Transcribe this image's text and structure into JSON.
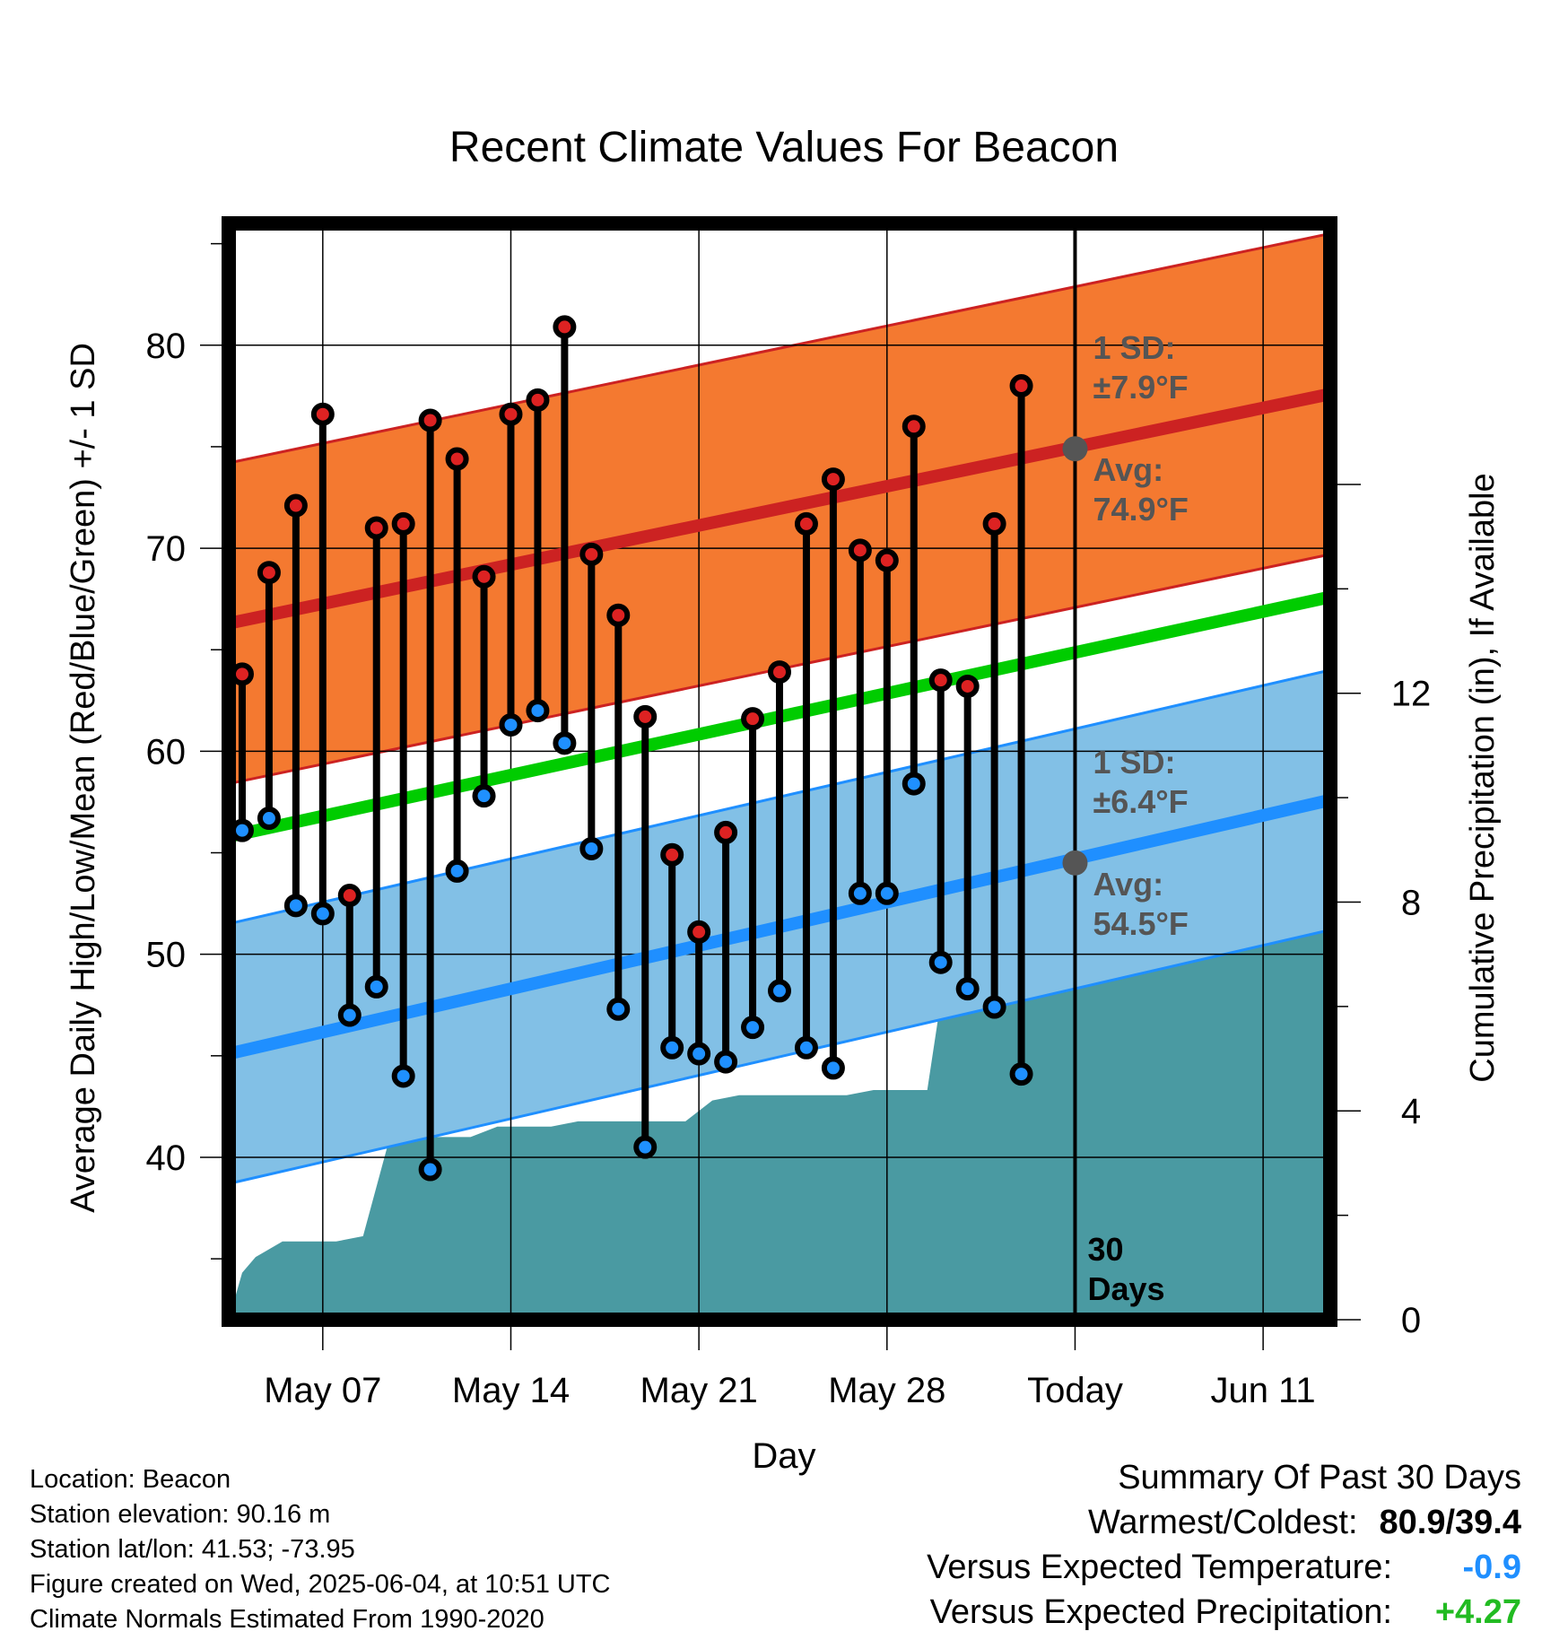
{
  "chart_data": {
    "type": "line",
    "title": "Recent Climate Values For Beacon",
    "xlabel": "Day",
    "ylabel_left": "Average Daily High/Low/Mean (Red/Blue/Green) +/- 1 SD",
    "ylabel_right": "Cumulative Precipitation (in), If Available",
    "x_tick_labels": [
      {
        "day": 3,
        "label": "May 07"
      },
      {
        "day": 10,
        "label": "May 14"
      },
      {
        "day": 17,
        "label": "May 21"
      },
      {
        "day": 24,
        "label": "May 28"
      },
      {
        "day": 31,
        "label": "Today"
      },
      {
        "day": 38,
        "label": "Jun 11"
      }
    ],
    "x_range_days_since_may04": [
      -0.5,
      40.5
    ],
    "ylim_left": [
      32,
      86
    ],
    "y_ticks_left": [
      40,
      50,
      60,
      70,
      80
    ],
    "ylim_right": [
      0,
      21
    ],
    "y_ticks_right": [
      0,
      4,
      8,
      12
    ],
    "grid": true,
    "colors": {
      "high_band": "#f47930",
      "high_line": "#cc2222",
      "low_band": "#82c0e6",
      "low_line": "#1f8fff",
      "mean_line": "#00cc00",
      "precip": "#4a9aa2",
      "summary_temp": "#1f8fff",
      "summary_precip": "#22bb22"
    },
    "normal_high": {
      "start": 66.3,
      "end": 77.6,
      "sd_label": "1 SD:",
      "sd_value": "±7.9°F",
      "avg_label": "Avg:",
      "avg_value": "74.9°F",
      "today_value": 74.9
    },
    "normal_low": {
      "start": 45.1,
      "end": 57.6,
      "sd_label": "1 SD:",
      "sd_value": "±6.4°F",
      "avg_label": "Avg:",
      "avg_value": "54.5°F",
      "today_value": 54.5
    },
    "normal_mean": {
      "start": 55.8,
      "end": 67.6
    },
    "today_marker": {
      "line1": "30",
      "line2": "Days"
    },
    "daily": [
      {
        "high": 63.8,
        "low": 56.1
      },
      {
        "high": 68.8,
        "low": 56.7
      },
      {
        "high": 72.1,
        "low": 52.4
      },
      {
        "high": 76.6,
        "low": 52.0
      },
      {
        "high": 52.9,
        "low": 47.0
      },
      {
        "high": 71.0,
        "low": 48.4
      },
      {
        "high": 71.2,
        "low": 44.0
      },
      {
        "high": 76.3,
        "low": 39.4
      },
      {
        "high": 74.4,
        "low": 54.1
      },
      {
        "high": 68.6,
        "low": 57.8
      },
      {
        "high": 76.6,
        "low": 61.3
      },
      {
        "high": 77.3,
        "low": 62.0
      },
      {
        "high": 80.9,
        "low": 60.4
      },
      {
        "high": 69.7,
        "low": 55.2
      },
      {
        "high": 66.7,
        "low": 47.3
      },
      {
        "high": 61.7,
        "low": 40.5
      },
      {
        "high": 54.9,
        "low": 45.4
      },
      {
        "high": 51.1,
        "low": 45.1
      },
      {
        "high": 56.0,
        "low": 44.7
      },
      {
        "high": 61.6,
        "low": 46.4
      },
      {
        "high": 63.9,
        "low": 48.2
      },
      {
        "high": 71.2,
        "low": 45.4
      },
      {
        "high": 73.4,
        "low": 44.4
      },
      {
        "high": 69.9,
        "low": 53.0
      },
      {
        "high": 69.4,
        "low": 53.0
      },
      {
        "high": 76.0,
        "low": 58.4
      },
      {
        "high": 63.5,
        "low": 49.6
      },
      {
        "high": 63.2,
        "low": 48.3
      },
      {
        "high": 71.2,
        "low": 47.4
      },
      {
        "high": 78.0,
        "low": 44.1
      }
    ],
    "precip_cumulative": [
      {
        "day": -0.5,
        "value": 0.0
      },
      {
        "day": 0.0,
        "value": 0.9
      },
      {
        "day": 0.5,
        "value": 1.2
      },
      {
        "day": 1.5,
        "value": 1.5
      },
      {
        "day": 3.0,
        "value": 1.5
      },
      {
        "day": 3.5,
        "value": 1.5
      },
      {
        "day": 4.5,
        "value": 1.6
      },
      {
        "day": 5.5,
        "value": 3.5
      },
      {
        "day": 6.5,
        "value": 3.5
      },
      {
        "day": 7.5,
        "value": 3.5
      },
      {
        "day": 8.5,
        "value": 3.5
      },
      {
        "day": 9.5,
        "value": 3.7
      },
      {
        "day": 10.5,
        "value": 3.7
      },
      {
        "day": 11.5,
        "value": 3.7
      },
      {
        "day": 12.5,
        "value": 3.8
      },
      {
        "day": 13.5,
        "value": 3.8
      },
      {
        "day": 14.5,
        "value": 3.8
      },
      {
        "day": 15.5,
        "value": 3.8
      },
      {
        "day": 16.5,
        "value": 3.8
      },
      {
        "day": 17.5,
        "value": 4.2
      },
      {
        "day": 18.5,
        "value": 4.3
      },
      {
        "day": 19.5,
        "value": 4.3
      },
      {
        "day": 20.5,
        "value": 4.3
      },
      {
        "day": 21.5,
        "value": 4.3
      },
      {
        "day": 22.5,
        "value": 4.3
      },
      {
        "day": 23.5,
        "value": 4.4
      },
      {
        "day": 24.5,
        "value": 4.4
      },
      {
        "day": 25.5,
        "value": 4.4
      },
      {
        "day": 26.5,
        "value": 7.8
      },
      {
        "day": 27.5,
        "value": 7.8
      },
      {
        "day": 40.5,
        "value": 7.8
      }
    ]
  },
  "footer": {
    "location": "Location: Beacon",
    "elevation": "Station elevation: 90.16 m",
    "latlon": "Station lat/lon: 41.53; -73.95",
    "created": "Figure created on Wed, 2025-06-04, at 10:51 UTC",
    "normals": "Climate Normals Estimated From 1990-2020"
  },
  "summary": {
    "title": "Summary Of Past 30 Days",
    "warmest_coldest_label": "Warmest/Coldest:",
    "warmest_coldest_value": "80.9/39.4",
    "temp_label": "Versus Expected Temperature:",
    "temp_value": "-0.9",
    "precip_label": "Versus Expected Precipitation:",
    "precip_value": "+4.27"
  }
}
